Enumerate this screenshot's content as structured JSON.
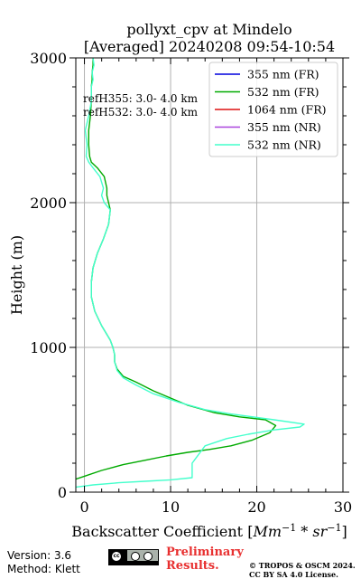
{
  "chart_data": {
    "type": "line",
    "title": "pollyxt_cpv at Mindelo",
    "subtitle": "[Averaged] 20240208 09:54-10:54",
    "xlabel": "Backscatter Coefficient [Mm^-1 * sr^-1]",
    "ylabel": "Height (m)",
    "xlim": [
      -1,
      30
    ],
    "ylim": [
      0,
      3000
    ],
    "xticks": [
      0,
      10,
      20,
      30
    ],
    "yticks": [
      0,
      1000,
      2000,
      3000
    ],
    "grid": true,
    "legend_position": "top-right",
    "annotations": [
      "refH355:  3.0- 4.0 km",
      "refH532:  3.0- 4.0 km"
    ],
    "series": [
      {
        "name": "355 nm (FR)",
        "color": "#0000dd",
        "x": [],
        "y": []
      },
      {
        "name": "532 nm (FR)",
        "color": "#00aa00",
        "x": [
          -1.0,
          0.0,
          2.0,
          4.5,
          7.0,
          9.5,
          12.0,
          14.5,
          17.0,
          19.5,
          21.5,
          22.2,
          21.0,
          18.0,
          15.0,
          12.0,
          10.0,
          8.0,
          6.0,
          4.5,
          3.8,
          3.5,
          3.5,
          3.3,
          3.0,
          2.0,
          1.2,
          0.8,
          0.8,
          1.0,
          1.5,
          2.2,
          2.8,
          3.0,
          2.8,
          2.6,
          2.6,
          2.3,
          1.5,
          0.8,
          0.6,
          0.5,
          0.5,
          0.7,
          0.8,
          0.8,
          0.9,
          0.9,
          1.0,
          1.0
        ],
        "y": [
          90,
          110,
          150,
          190,
          220,
          250,
          275,
          295,
          320,
          360,
          410,
          460,
          500,
          520,
          550,
          600,
          650,
          700,
          760,
          800,
          850,
          900,
          950,
          1000,
          1050,
          1150,
          1250,
          1350,
          1450,
          1550,
          1650,
          1750,
          1850,
          1950,
          2000,
          2050,
          2100,
          2180,
          2240,
          2280,
          2320,
          2400,
          2500,
          2600,
          2700,
          2800,
          2850,
          2900,
          2950,
          3000
        ]
      },
      {
        "name": "1064 nm (FR)",
        "color": "#dd1111",
        "x": [],
        "y": []
      },
      {
        "name": "355 nm (NR)",
        "color": "#aa44dd",
        "x": [],
        "y": []
      },
      {
        "name": "532 nm (NR)",
        "color": "#44ffcc",
        "x": [
          -1.0,
          1.0,
          4.0,
          7.0,
          10.0,
          12.5,
          12.5,
          14.0,
          16.5,
          19.0,
          22.0,
          25.0,
          25.5,
          22.0,
          17.0,
          14.0,
          11.0,
          8.0,
          6.0,
          4.5,
          3.8,
          3.5,
          3.5,
          3.3,
          3.0,
          2.0,
          1.2,
          0.8,
          0.8,
          1.0,
          1.5,
          2.2,
          2.8,
          3.0,
          2.3,
          2.0,
          2.2,
          1.8,
          1.0,
          0.5,
          0.2,
          0.3,
          0.1,
          0.5,
          0.8,
          0.8,
          1.0,
          0.9,
          1.1,
          1.0
        ],
        "y": [
          35,
          50,
          65,
          75,
          85,
          100,
          200,
          320,
          370,
          400,
          430,
          450,
          470,
          500,
          540,
          570,
          620,
          680,
          740,
          790,
          840,
          900,
          950,
          1000,
          1050,
          1150,
          1250,
          1350,
          1450,
          1550,
          1650,
          1750,
          1850,
          1950,
          2000,
          2050,
          2100,
          2180,
          2240,
          2280,
          2320,
          2400,
          2500,
          2600,
          2700,
          2800,
          2850,
          2900,
          2950,
          3000
        ]
      }
    ]
  },
  "footer": {
    "version": "Version: 3.6",
    "method": "Method: Klett",
    "preliminary_line1": "Preliminary",
    "preliminary_line2": "Results.",
    "copyright_line1": "© TROPOS & OSCM 2024.",
    "copyright_line2": "CC BY SA 4.0 License.",
    "license_badge": "cc-by-sa-badge"
  }
}
